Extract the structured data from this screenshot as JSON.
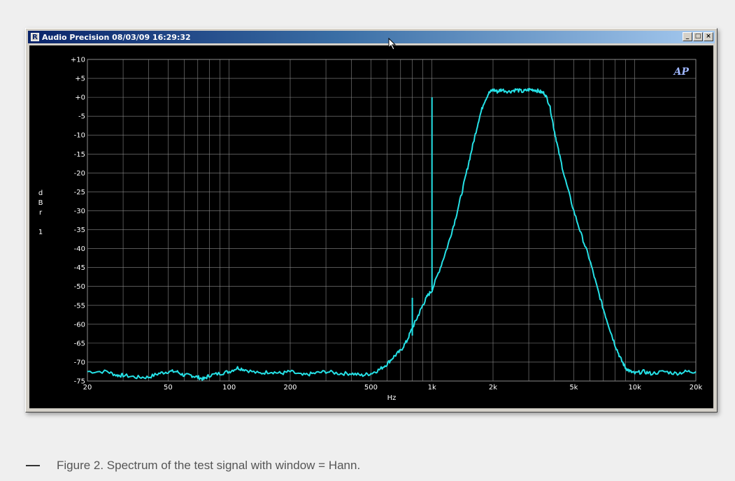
{
  "window": {
    "title": "Audio Precision  08/03/09 16:29:32",
    "app_icon_glyph": "R",
    "buttons": {
      "minimize": "_",
      "maximize": "□",
      "close": "×"
    },
    "logo": "AP"
  },
  "caption": "Figure 2. Spectrum of the test signal with window = Hann.",
  "colors": {
    "trace": "#25e1e6",
    "grid": "#8a8a8a",
    "plot_bg": "#000000",
    "text": "#ffffff"
  },
  "chart_data": {
    "type": "line",
    "xlabel": "Hz",
    "ylabel": [
      "d",
      "B",
      "r",
      "",
      "1"
    ],
    "x_scale": "log",
    "xlim": [
      20,
      20000
    ],
    "ylim": [
      -75,
      10
    ],
    "x_tick_values": [
      20,
      50,
      100,
      200,
      500,
      1000,
      2000,
      5000,
      10000,
      20000
    ],
    "x_tick_labels": [
      "20",
      "50",
      "100",
      "200",
      "500",
      "1k",
      "2k",
      "5k",
      "10k",
      "20k"
    ],
    "y_tick_values": [
      10,
      5,
      0,
      -5,
      -10,
      -15,
      -20,
      -25,
      -30,
      -35,
      -40,
      -45,
      -50,
      -55,
      -60,
      -65,
      -70,
      -75
    ],
    "y_tick_labels": [
      "+10",
      "+5",
      "+0",
      "-5",
      "-10",
      "-15",
      "-20",
      "-25",
      "-30",
      "-35",
      "-40",
      "-45",
      "-50",
      "-55",
      "-60",
      "-65",
      "-70",
      "-75"
    ],
    "grid": true,
    "series": [
      {
        "x": [
          20,
          25,
          28,
          30,
          35,
          40,
          45,
          50,
          55,
          60,
          65,
          70,
          75,
          80,
          90,
          100,
          110,
          120,
          140,
          160,
          180,
          200,
          230,
          260,
          300,
          350,
          400,
          450,
          500,
          550,
          600,
          650,
          700,
          750,
          800,
          850,
          900,
          950,
          1000,
          1100,
          1200,
          1300,
          1400,
          1500,
          1600,
          1700,
          1800,
          1900,
          2000,
          2100,
          2200,
          2400,
          2600,
          2800,
          3000,
          3200,
          3400,
          3600,
          3800,
          4000,
          4200,
          4500,
          5000,
          5500,
          6000,
          6500,
          7000,
          7500,
          8000,
          8500,
          9000,
          9500,
          10000,
          11000,
          12000,
          14000,
          16000,
          18000,
          20000
        ],
        "y": [
          -72.5,
          -72.5,
          -73.5,
          -73.5,
          -74,
          -74,
          -73,
          -72.5,
          -72.5,
          -73.5,
          -73.5,
          -74,
          -74.5,
          -73.5,
          -73,
          -72.5,
          -71.5,
          -72,
          -73,
          -72.5,
          -73,
          -72.5,
          -73.5,
          -73,
          -72.5,
          -73,
          -73,
          -73.5,
          -73,
          -72,
          -70.5,
          -68.5,
          -67,
          -64.5,
          -61,
          -58,
          -55,
          -52.5,
          -51,
          -45,
          -39,
          -32.5,
          -25.5,
          -18.5,
          -12,
          -6,
          -1.5,
          1,
          2,
          1.5,
          2,
          1.5,
          2,
          1.5,
          2,
          2,
          1.5,
          1,
          -2,
          -8.5,
          -14,
          -21,
          -30,
          -37,
          -43,
          -50,
          -56,
          -61,
          -65.5,
          -69,
          -71.5,
          -72.5,
          -73,
          -72.5,
          -73,
          -72.5,
          -73,
          -72.5,
          -72.5
        ]
      }
    ],
    "spikes": [
      {
        "x": 800,
        "top": -53,
        "base": -63
      },
      {
        "x": 1000,
        "top": 0,
        "base": -51
      }
    ]
  }
}
